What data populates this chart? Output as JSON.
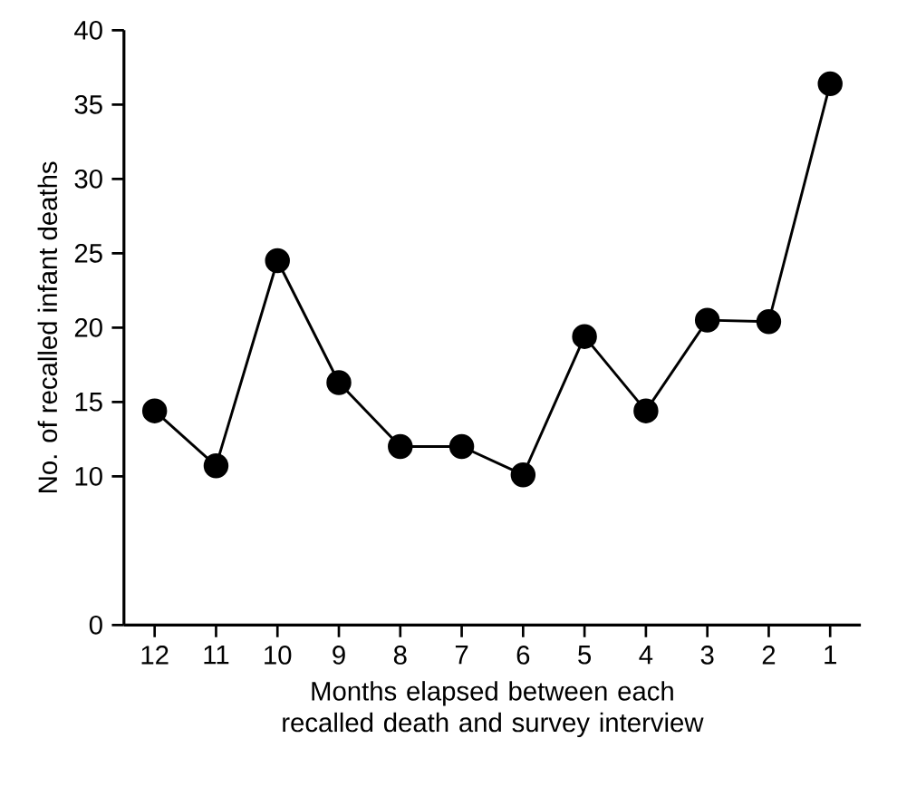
{
  "chart_data": {
    "type": "line",
    "xlabel": "Months elapsed between each recalled death and survey interview",
    "ylabel": "No. of recalled infant deaths",
    "categories": [
      "12",
      "11",
      "10",
      "9",
      "8",
      "7",
      "6",
      "5",
      "4",
      "3",
      "2",
      "1"
    ],
    "series": [
      {
        "color": "#000000",
        "values": [
          14.4,
          10.7,
          24.5,
          16.3,
          12.0,
          12.0,
          10.1,
          19.4,
          14.4,
          20.5,
          20.4,
          36.4
        ]
      }
    ],
    "ylim": [
      0,
      40
    ],
    "yticks": [
      0,
      10,
      15,
      20,
      25,
      30,
      35,
      40
    ],
    "marker": "circle",
    "line_style": "solid"
  }
}
